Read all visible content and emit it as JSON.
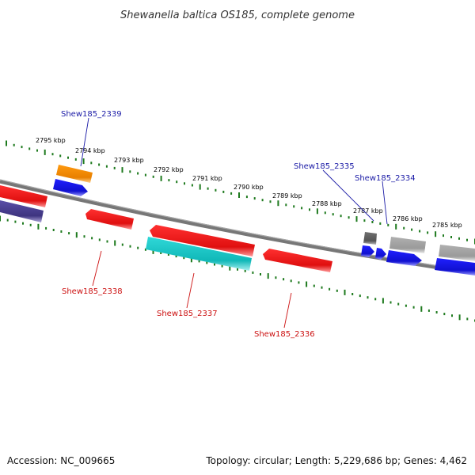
{
  "title": "Shewanella baltica OS185, complete genome",
  "footer": {
    "accession": "Accession: NC_009665",
    "summary": "Topology: circular; Length: 5,229,686 bp; Genes: 4,462"
  },
  "ticks": [
    {
      "label": "2795 kbp"
    },
    {
      "label": "2794 kbp"
    },
    {
      "label": "2793 kbp"
    },
    {
      "label": "2792 kbp"
    },
    {
      "label": "2791 kbp"
    },
    {
      "label": "2790 kbp"
    },
    {
      "label": "2789 kbp"
    },
    {
      "label": "2788 kbp"
    },
    {
      "label": "2787 kbp"
    },
    {
      "label": "2786 kbp"
    },
    {
      "label": "2785 kbp"
    }
  ],
  "gene_labels": {
    "shew2339": "Shew185_2339",
    "shew2335": "Shew185_2335",
    "shew2334": "Shew185_2334",
    "shew2338": "Shew185_2338",
    "shew2337": "Shew185_2337",
    "shew2336": "Shew185_2336"
  },
  "colors": {
    "backbone": "#7a7a7a",
    "tick_dots": "#1e7a1e",
    "label_blue": "#1a1aa6",
    "label_red": "#cc1010",
    "gene_red": "#ee1111",
    "gene_blue": "#1515dd",
    "gene_orange": "#f08a00",
    "gene_cyan": "#22c8c8",
    "gene_purple": "#4a3f8f",
    "gene_gray": "#a8a8a8",
    "gene_darkgray": "#6a6a6a"
  }
}
